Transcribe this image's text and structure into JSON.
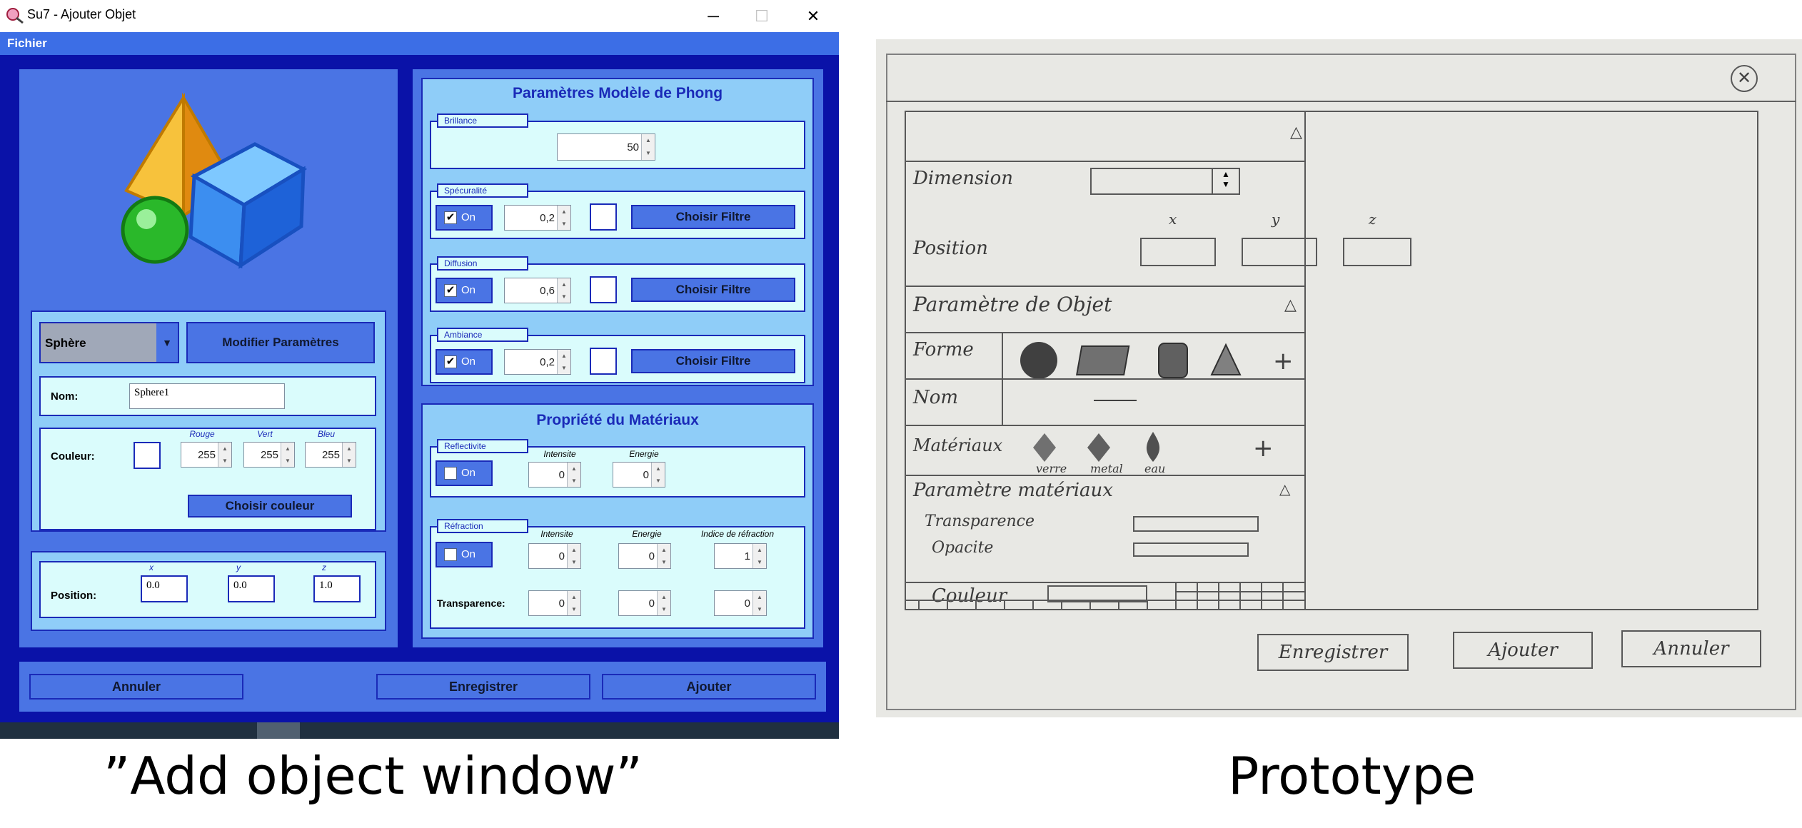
{
  "window": {
    "title": "Su7 - Ajouter Objet",
    "controls": {
      "minimize": "─",
      "maximize": "☐",
      "close": "✕"
    },
    "menu": [
      "Fichier"
    ],
    "left": {
      "shape_select": "Sphère",
      "modify_button": "Modifier Paramètres",
      "name_label": "Nom:",
      "name_value": "Sphere1",
      "color_label": "Couleur:",
      "rgb_labels": [
        "Rouge",
        "Vert",
        "Bleu"
      ],
      "rgb_values": [
        "255",
        "255",
        "255"
      ],
      "choose_color_button": "Choisir couleur",
      "position_label": "Position:",
      "axis_labels": [
        "x",
        "y",
        "z"
      ],
      "position_values": [
        "0.0",
        "0.0",
        "1.0"
      ]
    },
    "phong": {
      "title": "Paramètres Modèle de Phong",
      "brilliance_caption": "Brillance",
      "brilliance_value": "50",
      "rows": [
        {
          "caption": "Spécuralité",
          "check": "On",
          "value": "0,2",
          "button": "Choisir Filtre"
        },
        {
          "caption": "Diffusion",
          "check": "On",
          "value": "0,6",
          "button": "Choisir Filtre"
        },
        {
          "caption": "Ambiance",
          "check": "On",
          "value": "0,2",
          "button": "Choisir Filtre"
        }
      ]
    },
    "material": {
      "title": "Propriété du Matériaux",
      "reflect_caption": "Reflectivite",
      "reflect_check": "On",
      "reflect_col_labels": [
        "Intensite",
        "Energie"
      ],
      "reflect_values": [
        "0",
        "0"
      ],
      "refraction_caption": "Réfraction",
      "refraction_check": "On",
      "refraction_col_labels": [
        "Intensite",
        "Energie",
        "Indice de réfraction"
      ],
      "refraction_values": [
        "0",
        "0",
        "1"
      ],
      "transparence_label": "Transparence:",
      "transparence_values": [
        "0",
        "0",
        "0"
      ]
    },
    "bottom_buttons": {
      "cancel": "Annuler",
      "save": "Enregistrer",
      "add": "Ajouter"
    }
  },
  "sketch": {
    "rows": [
      "Dimension",
      "Position",
      "Paramètre de Objet",
      "Forme",
      "Nom",
      "Matériaux",
      "Paramètre matériaux",
      "Transparence",
      "Opacite",
      "Couleur"
    ],
    "axes": [
      "x",
      "y",
      "z"
    ],
    "materials": [
      "verre",
      "metal",
      "eau"
    ],
    "buttons": [
      "Enregistrer",
      "Ajouter",
      "Annuler"
    ]
  },
  "captions": {
    "left": "”Add object window”",
    "right": "Prototype"
  },
  "colors": {
    "accent": "#3c6ee6",
    "panel": "#4a74e4",
    "background": "#0a12a8",
    "light": "#8fcdf8",
    "field": "#dafcfc"
  }
}
